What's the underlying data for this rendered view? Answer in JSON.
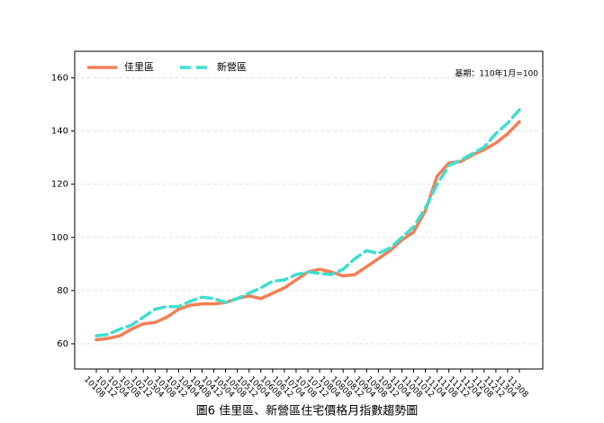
{
  "chart_data": {
    "type": "line",
    "title": "圖6 佳里區、新營區住宅價格月指數趨勢圖",
    "annotation": "基期：110年1月=100",
    "categories": [
      "10108",
      "10112",
      "10204",
      "10208",
      "10212",
      "10304",
      "10308",
      "10312",
      "10404",
      "10408",
      "10412",
      "10504",
      "10508",
      "10512",
      "10604",
      "10608",
      "10612",
      "10704",
      "10708",
      "10712",
      "10804",
      "10808",
      "10812",
      "10904",
      "10908",
      "10912",
      "11004",
      "11008",
      "11012",
      "11104",
      "11108",
      "11112",
      "11204",
      "11208",
      "11212",
      "11304",
      "11308"
    ],
    "series": [
      {
        "name": "佳里區",
        "color": "#f47e55",
        "dash": "solid",
        "values": [
          61.5,
          62,
          63,
          65.5,
          67.5,
          68,
          70,
          73,
          74.5,
          75,
          75,
          75.5,
          77,
          78,
          77,
          79,
          81,
          84,
          87,
          88,
          87,
          85.5,
          86,
          89,
          92,
          95,
          99,
          102,
          110,
          123,
          128,
          128.5,
          131,
          133,
          135.5,
          139,
          143.5
        ]
      },
      {
        "name": "新營區",
        "color": "#3fded0",
        "dash": "dashed",
        "values": [
          63,
          63.5,
          65.5,
          67,
          70,
          73,
          74,
          74,
          76,
          77.5,
          77,
          75.5,
          77,
          79,
          81,
          83.5,
          84,
          86,
          87,
          86.5,
          86,
          88,
          92,
          95,
          94,
          96,
          100,
          104,
          111,
          120,
          127,
          129,
          131.5,
          134,
          139,
          143,
          148
        ]
      }
    ],
    "ylim": [
      50.5,
      170
    ],
    "yticks": [
      60,
      80,
      100,
      120,
      140,
      160
    ],
    "grid": true,
    "legend": "upper left"
  }
}
